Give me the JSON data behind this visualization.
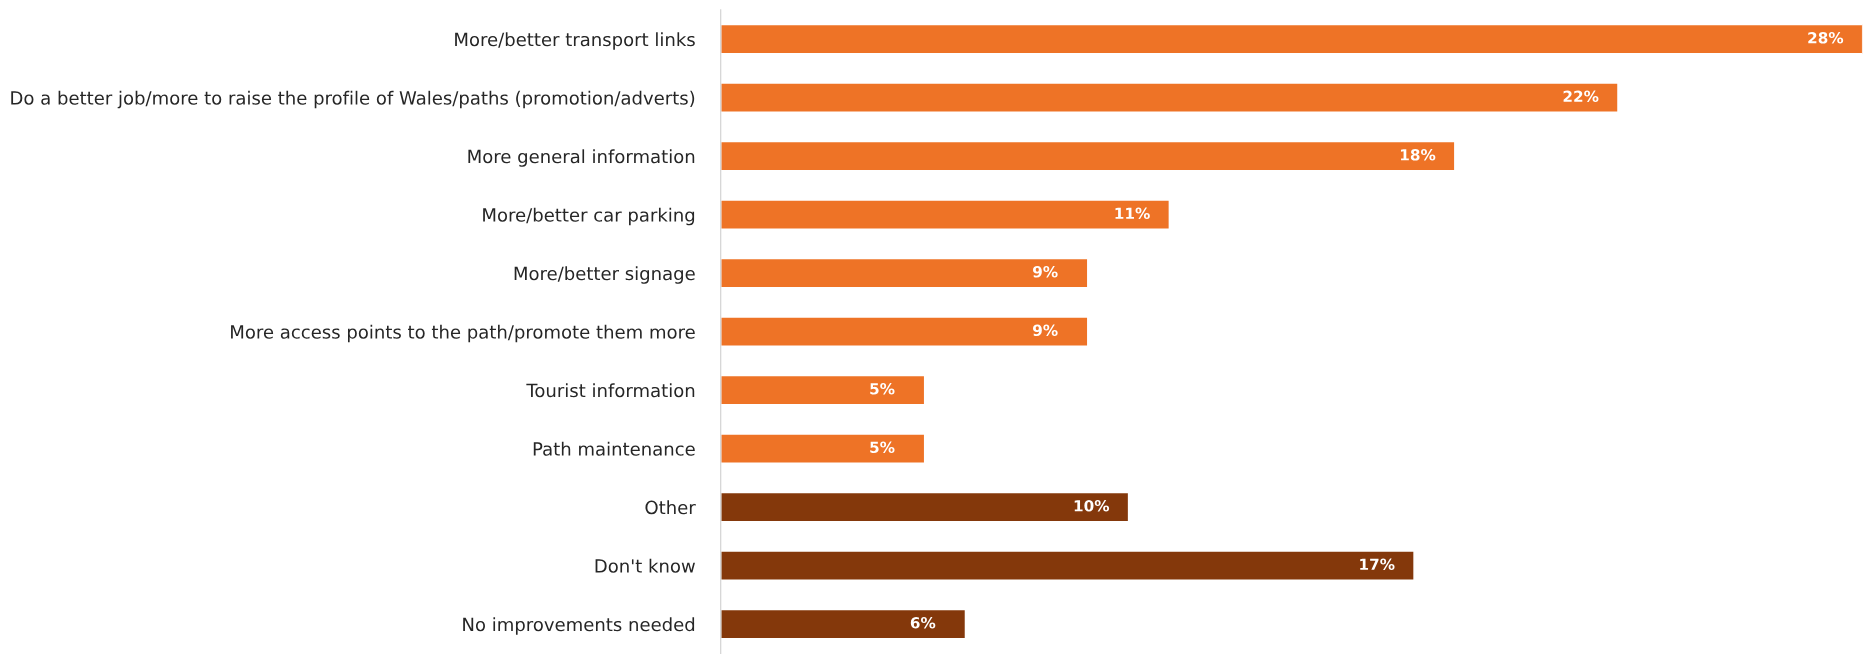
{
  "chart_data": {
    "type": "bar",
    "orientation": "horizontal",
    "categories": [
      "More/better transport links",
      "Do a better job/more to raise the profile of Wales/paths (promotion/adverts)",
      "More general information",
      "More/better car parking",
      "More/better signage",
      "More access points to the path/promote them more",
      "Tourist information",
      "Path maintenance",
      "Other",
      "Don't know",
      "No improvements needed"
    ],
    "values": [
      28,
      22,
      18,
      11,
      9,
      9,
      5,
      5,
      10,
      17,
      6
    ],
    "value_labels": [
      "28%",
      "22%",
      "18%",
      "11%",
      "9%",
      "9%",
      "5%",
      "5%",
      "10%",
      "17%",
      "6%"
    ],
    "colors": [
      "#ee7326",
      "#ee7326",
      "#ee7326",
      "#ee7326",
      "#ee7326",
      "#ee7326",
      "#ee7326",
      "#ee7326",
      "#84380b",
      "#84380b",
      "#84380b"
    ],
    "grid": false,
    "legend": false
  }
}
